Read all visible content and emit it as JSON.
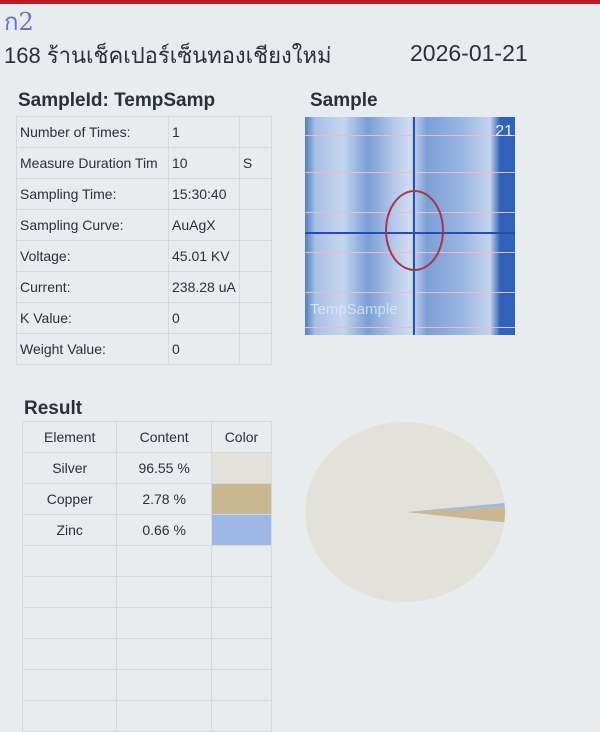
{
  "handwritten_note": "ก2",
  "header": {
    "shop": "168 ร้านเช็คเปอร์เซ็นทองเชียงใหม่",
    "date": "2026-01-21"
  },
  "sample_info": {
    "title": "SampleId:  TempSamp",
    "rows": [
      {
        "label": "Number of Times:",
        "value": "1",
        "unit": ""
      },
      {
        "label": "Measure Duration Tim",
        "value": "10",
        "unit": "S"
      },
      {
        "label": "Sampling Time:",
        "value": "15:30:40",
        "unit": ""
      },
      {
        "label": "Sampling Curve:",
        "value": "AuAgX",
        "unit": ""
      },
      {
        "label": "Voltage:",
        "value": "45.01 KV",
        "unit": ""
      },
      {
        "label": "Current:",
        "value": "238.28 uA",
        "unit": ""
      },
      {
        "label": "K Value:",
        "value": "0",
        "unit": ""
      },
      {
        "label": "Weight Value:",
        "value": "0",
        "unit": ""
      }
    ]
  },
  "sample_image": {
    "title": "Sample",
    "corner_label": "21",
    "watermark": "TempSample"
  },
  "result": {
    "title": "Result",
    "headers": [
      "Element",
      "Content",
      "Color"
    ],
    "rows": [
      {
        "element": "Silver",
        "content": "96.55 %",
        "color": "#e3e2da",
        "value": 96.55
      },
      {
        "element": "Copper",
        "content": "2.78 %",
        "color": "#c9b791",
        "value": 2.78
      },
      {
        "element": "Zinc",
        "content": "0.66 %",
        "color": "#9fb7e4",
        "value": 0.66
      }
    ]
  }
}
